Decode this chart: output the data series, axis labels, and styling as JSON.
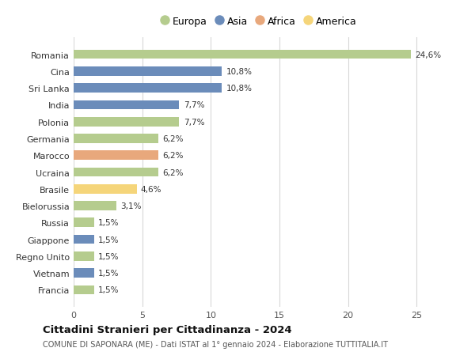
{
  "countries": [
    "Romania",
    "Cina",
    "Sri Lanka",
    "India",
    "Polonia",
    "Germania",
    "Marocco",
    "Ucraina",
    "Brasile",
    "Bielorussia",
    "Russia",
    "Giappone",
    "Regno Unito",
    "Vietnam",
    "Francia"
  ],
  "values": [
    24.6,
    10.8,
    10.8,
    7.7,
    7.7,
    6.2,
    6.2,
    6.2,
    4.6,
    3.1,
    1.5,
    1.5,
    1.5,
    1.5,
    1.5
  ],
  "labels": [
    "24,6%",
    "10,8%",
    "10,8%",
    "7,7%",
    "7,7%",
    "6,2%",
    "6,2%",
    "6,2%",
    "4,6%",
    "3,1%",
    "1,5%",
    "1,5%",
    "1,5%",
    "1,5%",
    "1,5%"
  ],
  "continents": [
    "Europa",
    "Asia",
    "Asia",
    "Asia",
    "Europa",
    "Europa",
    "Africa",
    "Europa",
    "America",
    "Europa",
    "Europa",
    "Asia",
    "Europa",
    "Asia",
    "Europa"
  ],
  "continent_colors": {
    "Europa": "#b5cc8e",
    "Asia": "#6b8cba",
    "Africa": "#e8a87c",
    "America": "#f5d57a"
  },
  "legend_order": [
    "Europa",
    "Asia",
    "Africa",
    "America"
  ],
  "xlim": [
    0,
    27
  ],
  "xticks": [
    0,
    5,
    10,
    15,
    20,
    25
  ],
  "title": "Cittadini Stranieri per Cittadinanza - 2024",
  "subtitle": "COMUNE DI SAPONARA (ME) - Dati ISTAT al 1° gennaio 2024 - Elaborazione TUTTITALIA.IT",
  "background_color": "#ffffff",
  "grid_color": "#d8d8d8"
}
